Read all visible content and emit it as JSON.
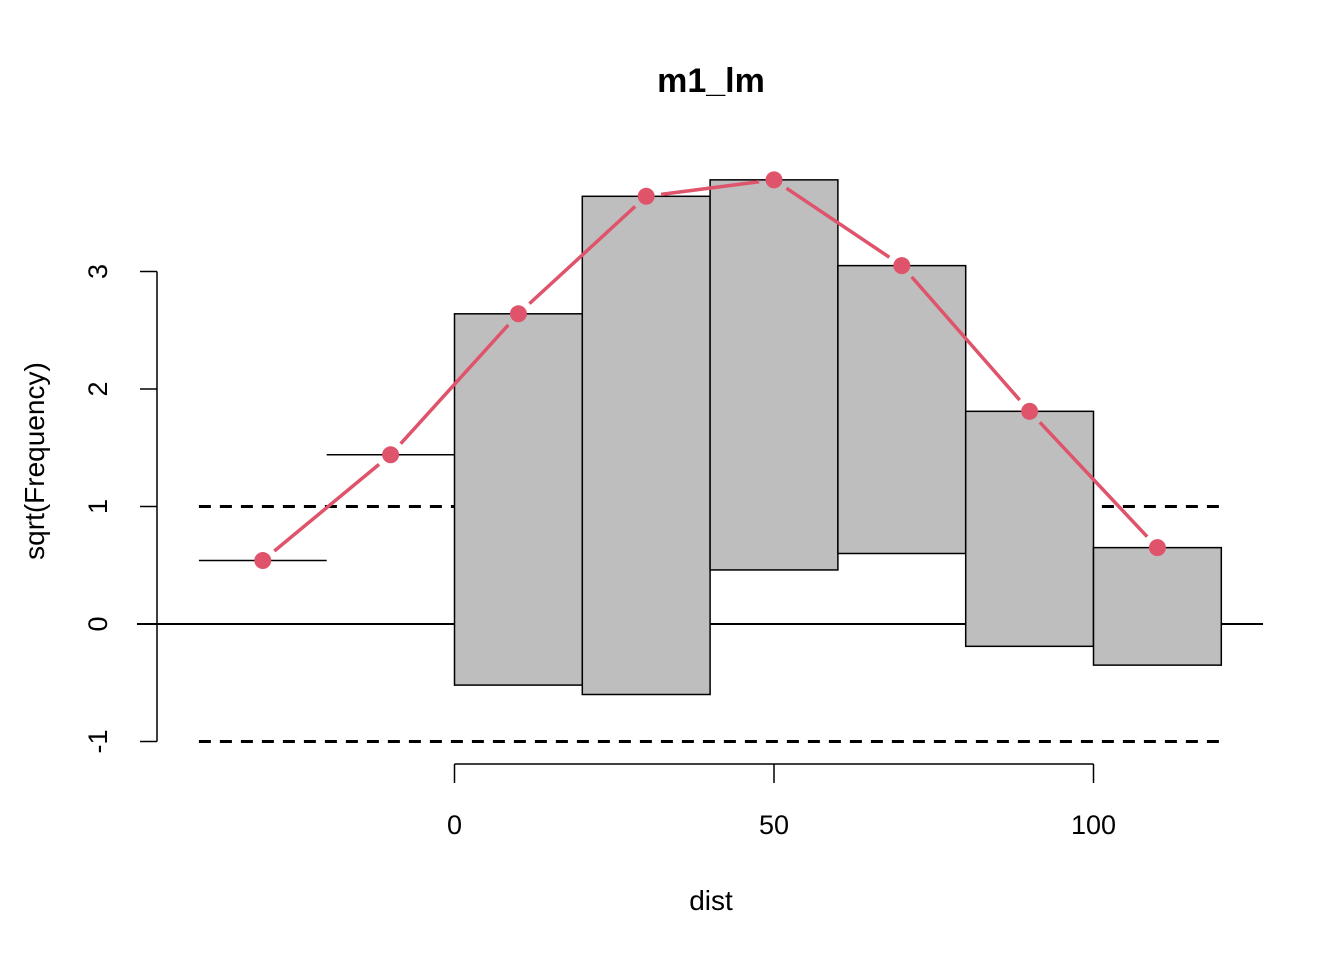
{
  "chart_data": {
    "type": "bar",
    "subtype": "hanging-rootogram",
    "title": "m1_lm",
    "xlabel": "dist",
    "ylabel": "sqrt(Frequency)",
    "xlim": [
      -40,
      120
    ],
    "ylim": [
      -1,
      3.8
    ],
    "x_ticks": [
      0,
      50,
      100
    ],
    "x_tick_labels": [
      "0",
      "50",
      "100"
    ],
    "y_ticks": [
      -1,
      0,
      1,
      2,
      3
    ],
    "y_tick_labels": [
      "-1",
      "0",
      "1",
      "2",
      "3"
    ],
    "bins": [
      {
        "x0": -40,
        "x1": -20,
        "expected_sqrt": 0.54,
        "observed_sqrt": 0.0
      },
      {
        "x0": -20,
        "x1": 0,
        "expected_sqrt": 1.44,
        "observed_sqrt": 0.0
      },
      {
        "x0": 0,
        "x1": 20,
        "expected_sqrt": 2.64,
        "observed_sqrt": 3.16
      },
      {
        "x0": 20,
        "x1": 40,
        "expected_sqrt": 3.64,
        "observed_sqrt": 4.24
      },
      {
        "x0": 40,
        "x1": 60,
        "expected_sqrt": 3.78,
        "observed_sqrt": 3.32
      },
      {
        "x0": 60,
        "x1": 80,
        "expected_sqrt": 3.05,
        "observed_sqrt": 2.45
      },
      {
        "x0": 80,
        "x1": 100,
        "expected_sqrt": 1.81,
        "observed_sqrt": 2.0
      },
      {
        "x0": 100,
        "x1": 120,
        "expected_sqrt": 0.65,
        "observed_sqrt": 1.0
      }
    ],
    "reference_lines": [
      -1,
      0,
      1
    ],
    "colors": {
      "bar_fill": "#bebebe",
      "bar_stroke": "#000000",
      "expected_line": "#DF536B"
    }
  }
}
